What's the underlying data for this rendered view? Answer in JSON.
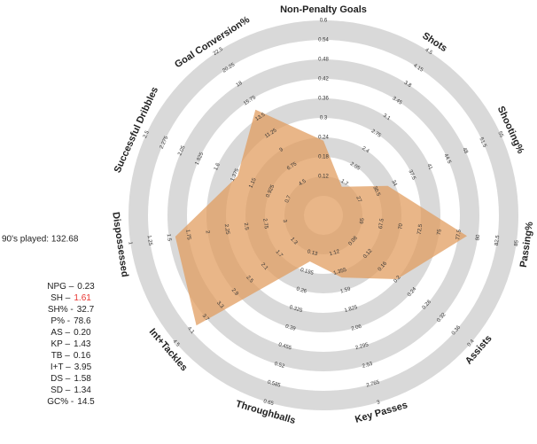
{
  "chart_data": {
    "type": "radar",
    "categories": [
      "Non-Penalty Goals",
      "Shots",
      "Shooting%",
      "Passing%",
      "Assists",
      "Key Passes",
      "Throughballs",
      "Int+Tackles",
      "Dispossessed",
      "Successful Dribbles",
      "Goal Conversion%"
    ],
    "values": [
      0.23,
      1.61,
      32.7,
      78.6,
      0.2,
      1.43,
      0.16,
      3.95,
      1.58,
      1.34,
      14.5
    ],
    "color": "#e09a5a",
    "ring_colors": [
      "#d9d9d9",
      "#ffffff"
    ],
    "axes": [
      {
        "lim": [
          0,
          0.6
        ],
        "ticks": [
          0.12,
          0.18,
          0.24,
          0.3,
          0.36,
          0.42,
          0.48,
          0.54,
          0.6
        ]
      },
      {
        "lim": [
          1.0,
          4.5
        ],
        "ticks": [
          1.7,
          2.05,
          2.4,
          2.75,
          3.1,
          3.45,
          3.8,
          4.15,
          4.5
        ]
      },
      {
        "lim": [
          20,
          55
        ],
        "ticks": [
          27,
          30.5,
          34,
          37.5,
          41,
          44.5,
          48,
          51.5,
          55
        ]
      },
      {
        "lim": [
          60,
          85
        ],
        "ticks": [
          65,
          67.5,
          70,
          72.5,
          75,
          77.5,
          80,
          82.5,
          85
        ]
      },
      {
        "lim": [
          0,
          0.4
        ],
        "ticks": [
          0.08,
          0.12,
          0.16,
          0.2,
          0.24,
          0.28,
          0.32,
          0.36,
          0.4
        ]
      },
      {
        "lim": [
          0.65,
          3
        ],
        "ticks": [
          1.12,
          1.355,
          1.59,
          1.825,
          2.06,
          2.295,
          2.53,
          2.765,
          3
        ]
      },
      {
        "lim": [
          0,
          0.65
        ],
        "ticks": [
          0.13,
          0.195,
          0.26,
          0.325,
          0.39,
          0.455,
          0.52,
          0.585,
          0.65
        ]
      },
      {
        "lim": [
          0.5,
          4.5
        ],
        "ticks": [
          1.3,
          1.7,
          2.1,
          2.5,
          2.9,
          3.3,
          3.7,
          4.1,
          4.5
        ]
      },
      {
        "lim": [
          3.5,
          1
        ],
        "ticks": [
          3,
          2.75,
          2.5,
          2.25,
          2,
          1.75,
          1.5,
          1.25,
          1
        ]
      },
      {
        "lim": [
          0.25,
          2.5
        ],
        "ticks": [
          0.7,
          0.925,
          1.15,
          1.375,
          1.6,
          1.825,
          2.05,
          2.275,
          2.5
        ]
      },
      {
        "lim": [
          0,
          22.5
        ],
        "ticks": [
          4.5,
          6.75,
          9,
          11.25,
          13.5,
          15.75,
          18,
          20.25,
          22.5
        ]
      }
    ]
  },
  "panel": {
    "played": "90's played: 132.68",
    "highlight_color": "#e8322e",
    "highlight_index": 1,
    "items": [
      {
        "label": "NPG –",
        "value": "0.23"
      },
      {
        "label": "SH –",
        "value": "1.61"
      },
      {
        "label": "SH% -",
        "value": "32.7"
      },
      {
        "label": "P% -",
        "value": "78.6"
      },
      {
        "label": "AS –",
        "value": "0.20"
      },
      {
        "label": "KP –",
        "value": "1.43"
      },
      {
        "label": "TB –",
        "value": "0.16"
      },
      {
        "label": "I+T –",
        "value": "3.95"
      },
      {
        "label": "DS –",
        "value": "1.58"
      },
      {
        "label": "SD –",
        "value": "1.34"
      },
      {
        "label": "GC% -",
        "value": "14.5"
      }
    ]
  }
}
